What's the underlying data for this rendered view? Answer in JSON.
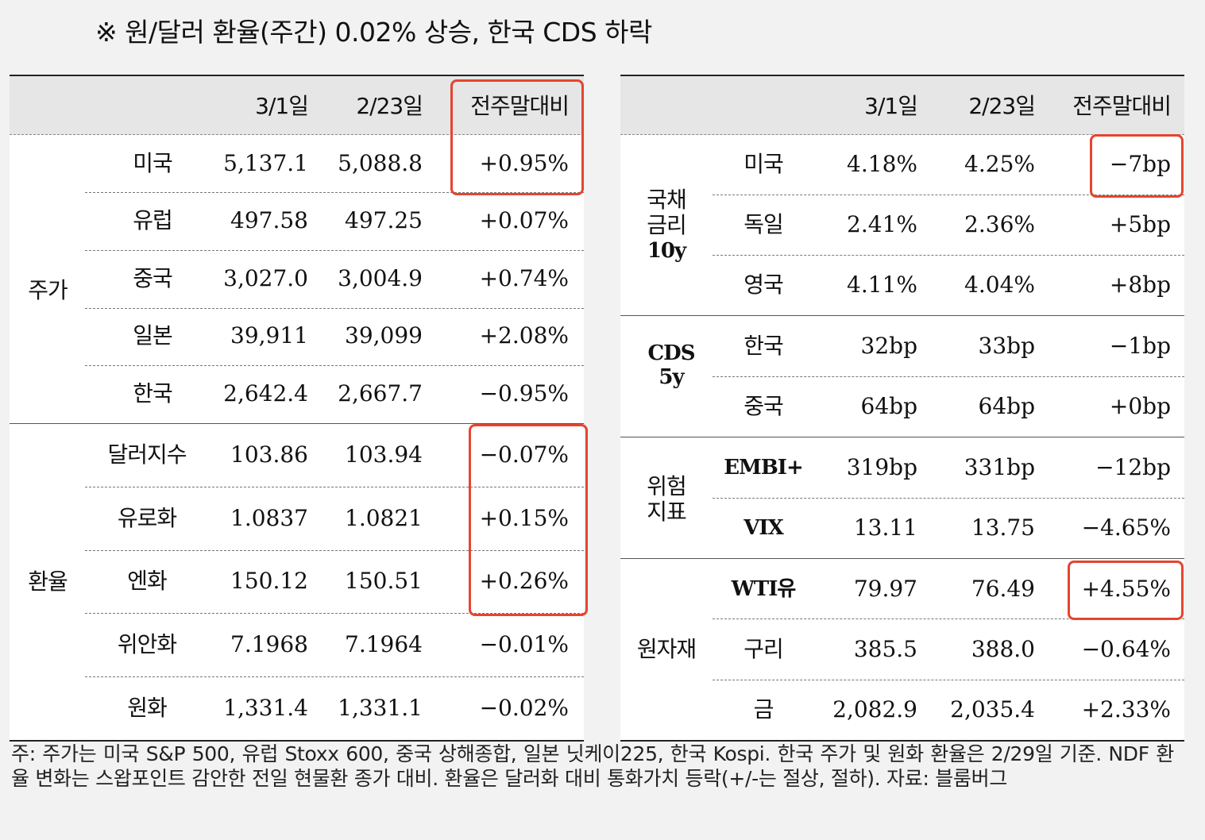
{
  "headline": "※ 원/달러 환율(주간) 0.02% 상승, 한국 CDS 하락",
  "left_table": {
    "headers": [
      "3/1일",
      "2/23일",
      "전주말대비"
    ],
    "groups": [
      {
        "label": "주가",
        "rows": [
          {
            "name": "미국",
            "cur": "5,137.1",
            "prev": "5,088.8",
            "chg": "+0.95%"
          },
          {
            "name": "유럽",
            "cur": "497.58",
            "prev": "497.25",
            "chg": "+0.07%"
          },
          {
            "name": "중국",
            "cur": "3,027.0",
            "prev": "3,004.9",
            "chg": "+0.74%"
          },
          {
            "name": "일본",
            "cur": "39,911",
            "prev": "39,099",
            "chg": "+2.08%"
          },
          {
            "name": "한국",
            "cur": "2,642.4",
            "prev": "2,667.7",
            "chg": "−0.95%"
          }
        ]
      },
      {
        "label": "환율",
        "rows": [
          {
            "name": "달러지수",
            "cur": "103.86",
            "prev": "103.94",
            "chg": "−0.07%"
          },
          {
            "name": "유로화",
            "cur": "1.0837",
            "prev": "1.0821",
            "chg": "+0.15%"
          },
          {
            "name": "엔화",
            "cur": "150.12",
            "prev": "150.51",
            "chg": "+0.26%"
          },
          {
            "name": "위안화",
            "cur": "7.1968",
            "prev": "7.1964",
            "chg": "−0.01%"
          },
          {
            "name": "원화",
            "cur": "1,331.4",
            "prev": "1,331.1",
            "chg": "−0.02%"
          }
        ]
      }
    ]
  },
  "right_table": {
    "headers": [
      "3/1일",
      "2/23일",
      "전주말대비"
    ],
    "groups": [
      {
        "label_lines": [
          "국채",
          "금리",
          "10y"
        ],
        "rows": [
          {
            "name": "미국",
            "cur": "4.18%",
            "prev": "4.25%",
            "chg": "−7bp"
          },
          {
            "name": "독일",
            "cur": "2.41%",
            "prev": "2.36%",
            "chg": "+5bp"
          },
          {
            "name": "영국",
            "cur": "4.11%",
            "prev": "4.04%",
            "chg": "+8bp"
          }
        ]
      },
      {
        "label_lines": [
          "CDS",
          "5y"
        ],
        "rows": [
          {
            "name": "한국",
            "cur": "32bp",
            "prev": "33bp",
            "chg": "−1bp"
          },
          {
            "name": "중국",
            "cur": "64bp",
            "prev": "64bp",
            "chg": "+0bp"
          }
        ]
      },
      {
        "label_lines": [
          "위험",
          "지표"
        ],
        "rows": [
          {
            "name": "EMBI+",
            "cur": "319bp",
            "prev": "331bp",
            "chg": "−12bp"
          },
          {
            "name": "VIX",
            "cur": "13.11",
            "prev": "13.75",
            "chg": "−4.65%"
          }
        ]
      },
      {
        "label_lines": [
          "원자재"
        ],
        "rows": [
          {
            "name": "WTI유",
            "cur": "79.97",
            "prev": "76.49",
            "chg": "+4.55%"
          },
          {
            "name": "구리",
            "cur": "385.5",
            "prev": "388.0",
            "chg": "−0.64%"
          },
          {
            "name": "금",
            "cur": "2,082.9",
            "prev": "2,035.4",
            "chg": "+2.33%"
          }
        ]
      }
    ]
  },
  "footnote": "주: 주가는 미국 S&P 500, 유럽 Stoxx 600, 중국 상해종합, 일본 닛케이225, 한국 Kospi. 한국 주가 및 원화 환율은 2/29일 기준. NDF 환율 변화는 스왑포인트 감안한 전일 현물환 종가 대비. 환율은 달러화 대비 통화가치 등락(+/-는 절상, 절하). 자료: 블룸버그",
  "highlight_color": "#e5452f"
}
